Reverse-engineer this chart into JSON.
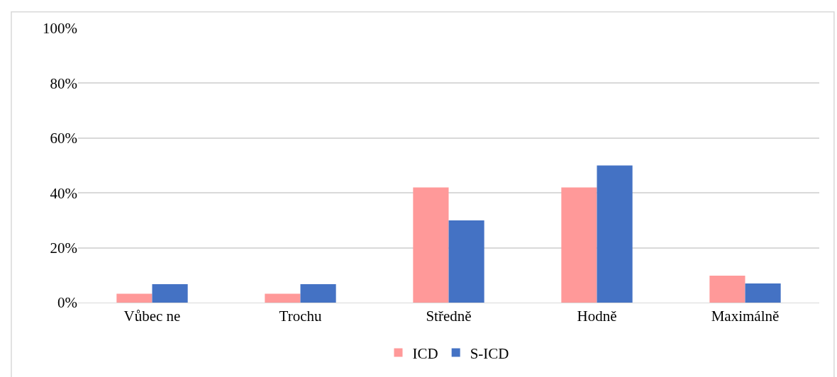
{
  "chart_data": {
    "type": "bar",
    "categories": [
      "Vůbec ne",
      "Trochu",
      "Středně",
      "Hodně",
      "Maximálně"
    ],
    "series": [
      {
        "name": "ICD",
        "color": "#ff9999",
        "values": [
          3.2,
          3.2,
          42,
          42,
          9.8
        ]
      },
      {
        "name": "S-ICD",
        "color": "#4472c4",
        "values": [
          6.7,
          6.7,
          30,
          50,
          7
        ]
      }
    ],
    "ylim": [
      0,
      100
    ],
    "yticks": [
      {
        "value": 0,
        "label": "0%"
      },
      {
        "value": 20,
        "label": "20%"
      },
      {
        "value": 40,
        "label": "40%"
      },
      {
        "value": 60,
        "label": "60%"
      },
      {
        "value": 80,
        "label": "80%"
      },
      {
        "value": 100,
        "label": "100%"
      }
    ],
    "grid": "y",
    "legend": "bottom"
  }
}
